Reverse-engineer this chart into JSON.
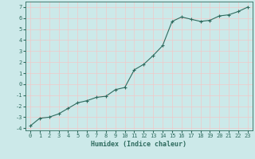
{
  "x": [
    0,
    1,
    2,
    3,
    4,
    5,
    6,
    7,
    8,
    9,
    10,
    11,
    12,
    13,
    14,
    15,
    16,
    17,
    18,
    19,
    20,
    21,
    22,
    23
  ],
  "y": [
    -3.8,
    -3.1,
    -3.0,
    -2.7,
    -2.2,
    -1.7,
    -1.5,
    -1.2,
    -1.1,
    -0.5,
    -0.3,
    1.3,
    1.8,
    2.6,
    3.5,
    5.7,
    6.1,
    5.9,
    5.7,
    5.8,
    6.2,
    6.3,
    6.6,
    7.0
  ],
  "line_color": "#2e6b5e",
  "marker": "+",
  "marker_size": 3,
  "marker_linewidth": 0.8,
  "line_width": 0.8,
  "bg_color": "#cce9e9",
  "grid_color": "#f0c8c8",
  "xlabel": "Humidex (Indice chaleur)",
  "xlabel_fontsize": 6,
  "tick_fontsize": 5,
  "xlim": [
    -0.5,
    23.5
  ],
  "ylim": [
    -4.2,
    7.5
  ],
  "yticks": [
    -4,
    -3,
    -2,
    -1,
    0,
    1,
    2,
    3,
    4,
    5,
    6,
    7
  ],
  "xticks": [
    0,
    1,
    2,
    3,
    4,
    5,
    6,
    7,
    8,
    9,
    10,
    11,
    12,
    13,
    14,
    15,
    16,
    17,
    18,
    19,
    20,
    21,
    22,
    23
  ]
}
